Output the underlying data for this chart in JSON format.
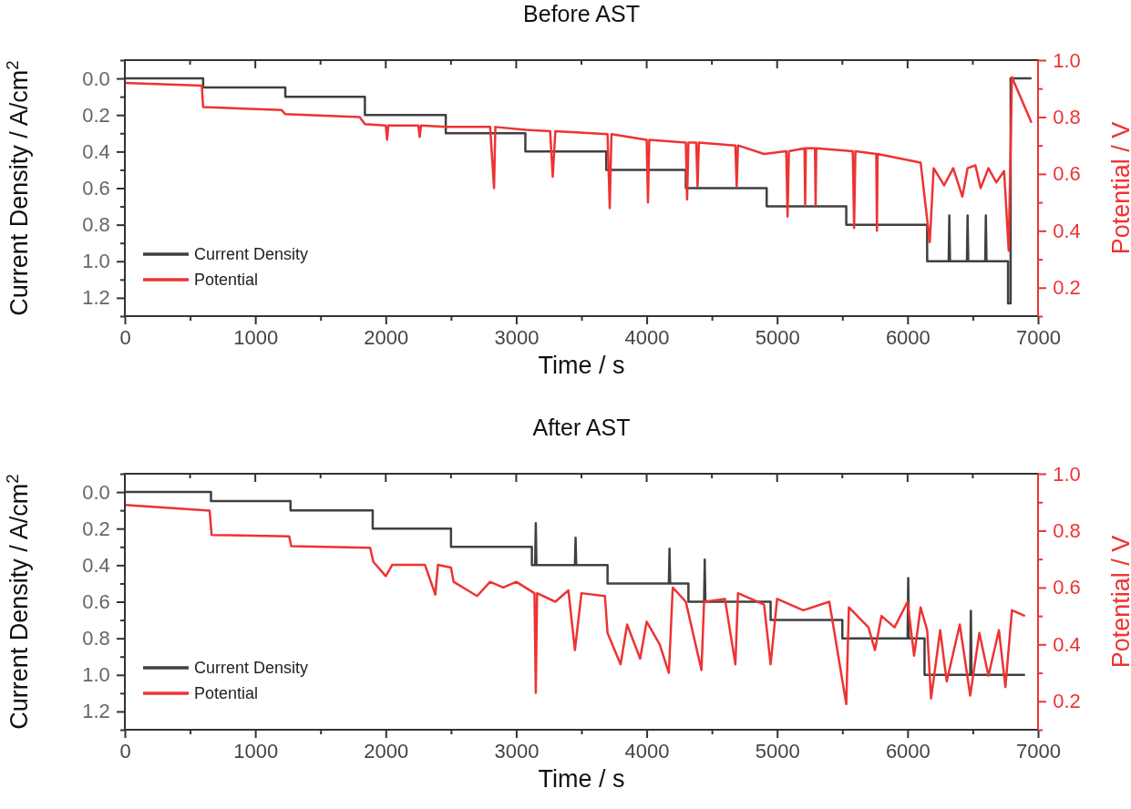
{
  "chart_data": [
    {
      "type": "line",
      "title": "Before AST",
      "xlabel": "Time / s",
      "ylabel": "Current Density / A/cm$^{2}$",
      "y2label": "Potential / V",
      "xlim": [
        0,
        7000
      ],
      "xticks": [
        0,
        {
          "value": 500,
          "label": null
        },
        1000,
        {
          "value": 1500,
          "label": null
        },
        2000,
        {
          "value": 2500,
          "label": null
        },
        3000,
        {
          "value": 3500,
          "label": null
        },
        4000,
        {
          "value": 4500,
          "label": null
        },
        5000,
        {
          "value": 5500,
          "label": null
        },
        6000,
        {
          "value": 6500,
          "label": null
        },
        7000
      ],
      "ylim": [
        1.3,
        -0.1
      ],
      "yticks": [
        {
          "value": -0.1,
          "label": null
        },
        "0.0",
        {
          "value": 0.1,
          "label": null
        },
        0.2,
        {
          "value": 0.3,
          "label": null
        },
        0.4,
        {
          "value": 0.5,
          "label": null
        },
        0.6,
        {
          "value": 0.7,
          "label": null
        },
        0.8,
        {
          "value": 0.9,
          "label": null
        },
        {
          "value": 1.0,
          "label": "1.0"
        },
        {
          "value": 1.1,
          "label": null
        },
        1.2,
        {
          "value": 1.3,
          "label": null
        }
      ],
      "y2lim": [
        0.1,
        1.0
      ],
      "y2ticks": [
        {
          "value": 0.1,
          "label": null
        },
        0.2,
        {
          "value": 0.3,
          "label": null
        },
        0.4,
        {
          "value": 0.5,
          "label": null
        },
        0.6,
        {
          "value": 0.7,
          "label": null
        },
        0.8,
        {
          "value": 0.9,
          "label": null
        },
        {
          "value": 1.0,
          "label": "1.0"
        }
      ],
      "legend": "bottom left",
      "grid": false,
      "line_style": "solid",
      "marker": "none",
      "series": [
        {
          "name": "Current Density",
          "color": "#404040",
          "x": [
            0,
            600,
            600,
            1230,
            1230,
            1840,
            1840,
            2460,
            2460,
            3070,
            3070,
            3690,
            3690,
            4300,
            4300,
            4920,
            4920,
            5530,
            5530,
            6150,
            6150,
            6315,
            6320,
            6325,
            6455,
            6460,
            6465,
            6595,
            6600,
            6605,
            6770,
            6770,
            6790,
            6790,
            6950
          ],
          "values": [
            0,
            0,
            0.05,
            0.05,
            0.1,
            0.1,
            0.2,
            0.2,
            0.3,
            0.3,
            0.4,
            0.4,
            0.5,
            0.5,
            0.6,
            0.6,
            0.7,
            0.7,
            0.8,
            0.8,
            1.0,
            1.0,
            0.75,
            1.0,
            1.0,
            0.75,
            1.0,
            1.0,
            0.75,
            1.0,
            1.0,
            1.23,
            1.23,
            0,
            0
          ]
        },
        {
          "name": "Potential",
          "color": "#ee3333",
          "axis": "y2",
          "x": [
            0,
            590,
            600,
            1200,
            1230,
            1800,
            1840,
            2000,
            2010,
            2020,
            2250,
            2260,
            2270,
            2460,
            2800,
            2830,
            2840,
            3070,
            3260,
            3280,
            3300,
            3700,
            3717,
            3730,
            4000,
            4010,
            4020,
            4300,
            4310,
            4320,
            4380,
            4390,
            4400,
            4680,
            4690,
            4700,
            4900,
            5070,
            5080,
            5090,
            5210,
            5215,
            5220,
            5290,
            5295,
            5300,
            5580,
            5590,
            5600,
            5760,
            5765,
            5770,
            6100,
            6170,
            6200,
            6280,
            6350,
            6420,
            6460,
            6520,
            6560,
            6620,
            6680,
            6740,
            6775,
            6800,
            6950
          ],
          "values": [
            0.92,
            0.91,
            0.835,
            0.825,
            0.81,
            0.8,
            0.775,
            0.77,
            0.72,
            0.77,
            0.77,
            0.73,
            0.77,
            0.765,
            0.765,
            0.55,
            0.765,
            0.755,
            0.75,
            0.59,
            0.75,
            0.74,
            0.48,
            0.74,
            0.72,
            0.5,
            0.72,
            0.71,
            0.51,
            0.71,
            0.71,
            0.555,
            0.71,
            0.7,
            0.555,
            0.7,
            0.67,
            0.68,
            0.45,
            0.68,
            0.69,
            0.49,
            0.69,
            0.69,
            0.49,
            0.69,
            0.68,
            0.41,
            0.68,
            0.67,
            0.4,
            0.67,
            0.64,
            0.36,
            0.62,
            0.56,
            0.62,
            0.52,
            0.62,
            0.63,
            0.55,
            0.62,
            0.57,
            0.61,
            0.33,
            0.94,
            0.78
          ]
        }
      ]
    },
    {
      "type": "line",
      "title": "After AST",
      "xlabel": "Time / s",
      "ylabel": "Current Density / A/cm$^{2}$",
      "y2label": "Potential / V",
      "xlim": [
        0,
        7000
      ],
      "xticks": [
        0,
        {
          "value": 500,
          "label": null
        },
        1000,
        {
          "value": 1500,
          "label": null
        },
        2000,
        {
          "value": 2500,
          "label": null
        },
        3000,
        {
          "value": 3500,
          "label": null
        },
        4000,
        {
          "value": 4500,
          "label": null
        },
        5000,
        {
          "value": 5500,
          "label": null
        },
        6000,
        {
          "value": 6500,
          "label": null
        },
        7000
      ],
      "ylim": [
        1.3,
        -0.1
      ],
      "yticks": [
        {
          "value": -0.1,
          "label": null
        },
        "0.0",
        {
          "value": 0.1,
          "label": null
        },
        0.2,
        {
          "value": 0.3,
          "label": null
        },
        0.4,
        {
          "value": 0.5,
          "label": null
        },
        0.6,
        {
          "value": 0.7,
          "label": null
        },
        0.8,
        {
          "value": 0.9,
          "label": null
        },
        {
          "value": 1.0,
          "label": "1.0"
        },
        {
          "value": 1.1,
          "label": null
        },
        1.2,
        {
          "value": 1.3,
          "label": null
        }
      ],
      "y2lim": [
        0.1,
        1.0
      ],
      "y2ticks": [
        {
          "value": 0.1,
          "label": null
        },
        0.2,
        {
          "value": 0.3,
          "label": null
        },
        0.4,
        {
          "value": 0.5,
          "label": null
        },
        0.6,
        {
          "value": 0.7,
          "label": null
        },
        0.8,
        {
          "value": 0.9,
          "label": null
        },
        {
          "value": 1.0,
          "label": "1.0"
        }
      ],
      "legend": "bottom left",
      "grid": false,
      "line_style": "solid",
      "marker": "none",
      "series": [
        {
          "name": "Current Density",
          "color": "#404040",
          "x": [
            0,
            660,
            660,
            1270,
            1270,
            1900,
            1900,
            2500,
            2500,
            3120,
            3120,
            3145,
            3150,
            3155,
            3450,
            3455,
            3460,
            3700,
            3700,
            4170,
            4175,
            4180,
            4320,
            4320,
            4440,
            4445,
            4450,
            4950,
            4950,
            5500,
            5500,
            6000,
            6005,
            6010,
            6130,
            6130,
            6480,
            6485,
            6490,
            6900
          ],
          "values": [
            0,
            0,
            0.05,
            0.05,
            0.1,
            0.1,
            0.2,
            0.2,
            0.3,
            0.3,
            0.4,
            0.4,
            0.17,
            0.4,
            0.4,
            0.25,
            0.4,
            0.4,
            0.5,
            0.5,
            0.31,
            0.5,
            0.5,
            0.6,
            0.6,
            0.37,
            0.6,
            0.6,
            0.7,
            0.7,
            0.8,
            0.8,
            0.47,
            0.8,
            0.8,
            1.0,
            1.0,
            0.65,
            1.0,
            1.0
          ]
        },
        {
          "name": "Potential",
          "color": "#ee3333",
          "axis": "y2",
          "x": [
            0,
            650,
            665,
            1260,
            1275,
            1880,
            1905,
            2000,
            2050,
            2300,
            2380,
            2400,
            2500,
            2520,
            2700,
            2800,
            2900,
            3000,
            3140,
            3150,
            3160,
            3300,
            3400,
            3450,
            3500,
            3680,
            3700,
            3800,
            3850,
            3950,
            4000,
            4100,
            4170,
            4200,
            4300,
            4420,
            4440,
            4600,
            4680,
            4700,
            4900,
            4950,
            5000,
            5200,
            5400,
            5530,
            5550,
            5700,
            5750,
            5800,
            5900,
            6000,
            6050,
            6100,
            6150,
            6180,
            6250,
            6300,
            6400,
            6480,
            6550,
            6620,
            6700,
            6750,
            6800,
            6900
          ],
          "values": [
            0.89,
            0.87,
            0.785,
            0.78,
            0.745,
            0.74,
            0.69,
            0.64,
            0.68,
            0.68,
            0.575,
            0.68,
            0.67,
            0.62,
            0.57,
            0.62,
            0.6,
            0.62,
            0.58,
            0.23,
            0.58,
            0.55,
            0.59,
            0.38,
            0.58,
            0.57,
            0.44,
            0.33,
            0.47,
            0.35,
            0.48,
            0.4,
            0.3,
            0.6,
            0.55,
            0.31,
            0.55,
            0.56,
            0.33,
            0.58,
            0.54,
            0.33,
            0.56,
            0.52,
            0.55,
            0.19,
            0.53,
            0.46,
            0.38,
            0.5,
            0.46,
            0.55,
            0.36,
            0.53,
            0.45,
            0.21,
            0.45,
            0.27,
            0.47,
            0.22,
            0.44,
            0.29,
            0.45,
            0.25,
            0.52,
            0.5
          ]
        }
      ]
    }
  ]
}
